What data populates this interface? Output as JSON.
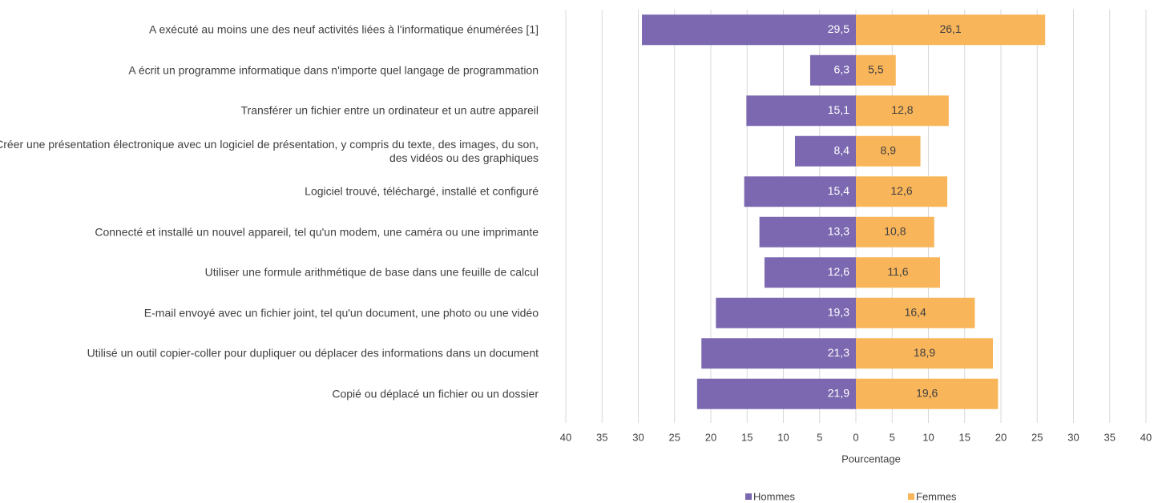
{
  "chart_data": {
    "type": "bar",
    "orientation": "horizontal",
    "diverging": true,
    "categories": [
      "A exécuté au moins une des neuf activités liées à l'informatique énumérées [1]",
      "A écrit un programme informatique dans n'importe quel langage de programmation",
      "Transférer un fichier entre un ordinateur et un autre appareil",
      "Créer une présentation électronique avec un logiciel de présentation, y compris du texte, des images, du son, des vidéos ou des graphiques",
      "Logiciel trouvé, téléchargé, installé et configuré",
      "Connecté et installé un nouvel appareil, tel qu'un modem, une caméra ou une imprimante",
      "Utiliser une formule arithmétique de base dans une feuille de calcul",
      "E-mail envoyé avec un fichier joint, tel qu'un document, une photo ou une vidéo",
      "Utilisé un outil copier-coller pour dupliquer ou déplacer des informations dans un document",
      "Copié ou déplacé un fichier ou un dossier"
    ],
    "series": [
      {
        "name": "Hommes",
        "color": "#7b68b0",
        "values": [
          -29.5,
          -6.3,
          -15.1,
          -8.4,
          -15.4,
          -13.3,
          -12.6,
          -19.3,
          -21.3,
          -21.9
        ],
        "value_labels": [
          "29,5",
          "6,3",
          "15,1",
          "8,4",
          "15,4",
          "13,3",
          "12,6",
          "19,3",
          "21,3",
          "21,9"
        ]
      },
      {
        "name": "Femmes",
        "color": "#f9b55a",
        "values": [
          26.1,
          5.5,
          12.8,
          8.9,
          12.6,
          10.8,
          11.6,
          16.4,
          18.9,
          19.6
        ],
        "value_labels": [
          "26,1",
          "5,5",
          "12,8",
          "8,9",
          "12,6",
          "10,8",
          "11,6",
          "16,4",
          "18,9",
          "19,6"
        ]
      }
    ],
    "xlabel": "Pourcentage",
    "xlim": [
      -40,
      40
    ],
    "xticks": [
      {
        "value": -40,
        "label": "40"
      },
      {
        "value": -35,
        "label": "35"
      },
      {
        "value": -30,
        "label": "30"
      },
      {
        "value": -25,
        "label": "25"
      },
      {
        "value": -20,
        "label": "20"
      },
      {
        "value": -15,
        "label": "15"
      },
      {
        "value": -10,
        "label": "10"
      },
      {
        "value": -5,
        "label": "5"
      },
      0,
      5,
      10,
      15,
      20,
      25,
      30,
      35,
      40
    ],
    "grid": true,
    "legend": "bottom"
  }
}
